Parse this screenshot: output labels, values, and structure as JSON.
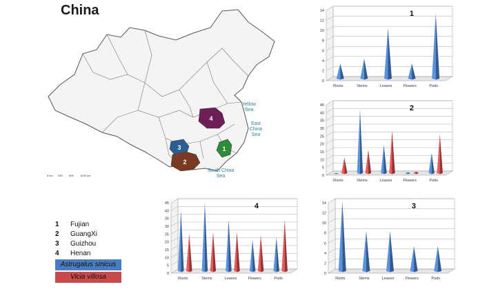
{
  "figure": {
    "title": "China",
    "map_labels": {
      "yellow_sea": "Yellow\nSea",
      "east_china_sea": "East\nChina\nSea",
      "south_china_sea": "South China\nSea"
    },
    "region_markers": [
      "1",
      "2",
      "3",
      "4"
    ],
    "scale_bar_labels": [
      "0 km",
      "250",
      "500",
      "1000 km"
    ]
  },
  "colors": {
    "astragalus": "#4a7cc0",
    "vicia": "#c84a4a",
    "fujian": "#2e8b3a",
    "guangxi": "#7a3a22",
    "guizhou": "#2d5e93",
    "henan": "#6b1f55",
    "land": "#f4f4f4",
    "map_line": "#555555"
  },
  "legend": {
    "regions": [
      {
        "num": "1",
        "name": "Fujian"
      },
      {
        "num": "2",
        "name": "GuangXi"
      },
      {
        "num": "3",
        "name": "Guizhou"
      },
      {
        "num": "4",
        "name": "Henan"
      }
    ],
    "species": [
      {
        "name": "Astrugalus sinicus",
        "color": "#4a7cc0"
      },
      {
        "name": "Vicia villosa",
        "color": "#c84a4a"
      }
    ]
  },
  "chart_data": [
    {
      "type": "bar",
      "title": "1",
      "categories": [
        "Roots",
        "Stems",
        "Leaves",
        "Flowers",
        "Pods"
      ],
      "ylim": [
        0,
        14
      ],
      "yticks": [
        0,
        2,
        4,
        6,
        8,
        10,
        12,
        14
      ],
      "grid": true,
      "series": [
        {
          "name": "Astrugalus sinicus",
          "values": [
            3,
            4,
            10,
            3,
            13
          ]
        }
      ]
    },
    {
      "type": "bar",
      "title": "2",
      "categories": [
        "Roots",
        "Stems",
        "Leaves",
        "Flowers",
        "Pods"
      ],
      "ylim": [
        0,
        45
      ],
      "yticks": [
        0,
        5,
        10,
        15,
        20,
        25,
        30,
        35,
        40,
        45
      ],
      "grid": true,
      "series": [
        {
          "name": "Astrugalus sinicus",
          "values": [
            0,
            41,
            18,
            0.5,
            13
          ]
        },
        {
          "name": "Vicia villosa",
          "values": [
            10,
            15,
            27,
            1,
            25
          ]
        }
      ]
    },
    {
      "type": "bar",
      "title": "4",
      "categories": [
        "Roots",
        "Stems",
        "Leaves",
        "Flowers",
        "Pods"
      ],
      "ylim": [
        0,
        45
      ],
      "yticks": [
        0,
        5,
        10,
        15,
        20,
        25,
        30,
        35,
        40,
        45
      ],
      "grid": true,
      "series": [
        {
          "name": "Astrugalus sinicus",
          "values": [
            39,
            44,
            33,
            20,
            22
          ]
        },
        {
          "name": "Vicia villosa",
          "values": [
            24,
            25,
            25,
            23,
            33
          ]
        }
      ]
    },
    {
      "type": "bar",
      "title": "3",
      "categories": [
        "Roots",
        "Stems",
        "Leaves",
        "Flowers",
        "Pods"
      ],
      "ylim": [
        0,
        14
      ],
      "yticks": [
        0,
        2,
        4,
        6,
        8,
        10,
        12,
        14
      ],
      "grid": true,
      "series": [
        {
          "name": "Astrugalus sinicus",
          "values": [
            14,
            8,
            8,
            5,
            5
          ]
        }
      ]
    }
  ]
}
